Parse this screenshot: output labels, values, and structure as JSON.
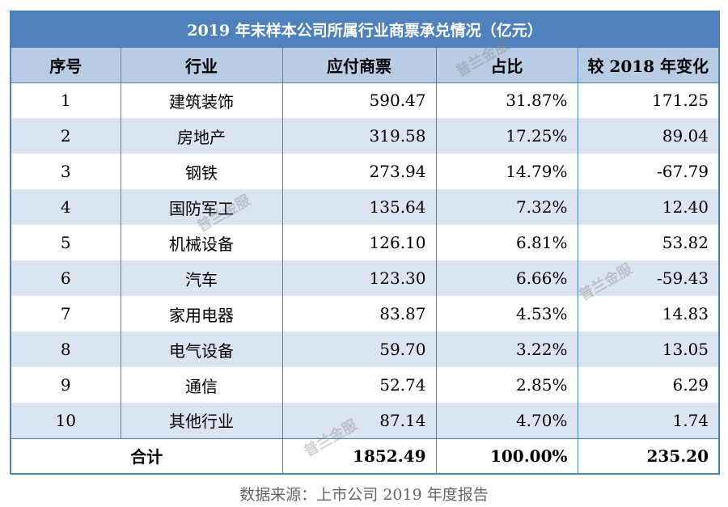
{
  "table": {
    "title": "2019 年末样本公司所属行业商票承兑情况（亿元）",
    "headers": [
      "序号",
      "行业",
      "应付商票",
      "占比",
      "较 2018 年变化"
    ],
    "rows": [
      {
        "no": "1",
        "industry": "建筑装饰",
        "payable": "590.47",
        "share": "31.87%",
        "change": "171.25"
      },
      {
        "no": "2",
        "industry": "房地产",
        "payable": "319.58",
        "share": "17.25%",
        "change": "89.04"
      },
      {
        "no": "3",
        "industry": "钢铁",
        "payable": "273.94",
        "share": "14.79%",
        "change": "-67.79"
      },
      {
        "no": "4",
        "industry": "国防军工",
        "payable": "135.64",
        "share": "7.32%",
        "change": "12.40"
      },
      {
        "no": "5",
        "industry": "机械设备",
        "payable": "126.10",
        "share": "6.81%",
        "change": "53.82"
      },
      {
        "no": "6",
        "industry": "汽车",
        "payable": "123.30",
        "share": "6.66%",
        "change": "-59.43"
      },
      {
        "no": "7",
        "industry": "家用电器",
        "payable": "83.87",
        "share": "4.53%",
        "change": "14.83"
      },
      {
        "no": "8",
        "industry": "电气设备",
        "payable": "59.70",
        "share": "3.22%",
        "change": "13.05"
      },
      {
        "no": "9",
        "industry": "通信",
        "payable": "52.74",
        "share": "2.85%",
        "change": "6.29"
      },
      {
        "no": "10",
        "industry": "其他行业",
        "payable": "87.14",
        "share": "4.70%",
        "change": "1.74"
      }
    ],
    "total": {
      "label": "合计",
      "payable": "1852.49",
      "share": "100.00%",
      "change": "235.20"
    }
  },
  "source": "数据来源：上市公司 2019 年度报告",
  "watermark": "普兰金服",
  "colors": {
    "header_blue": "#4f81bd",
    "head_light": "#b8cce4",
    "band": "#dbe5f1"
  }
}
